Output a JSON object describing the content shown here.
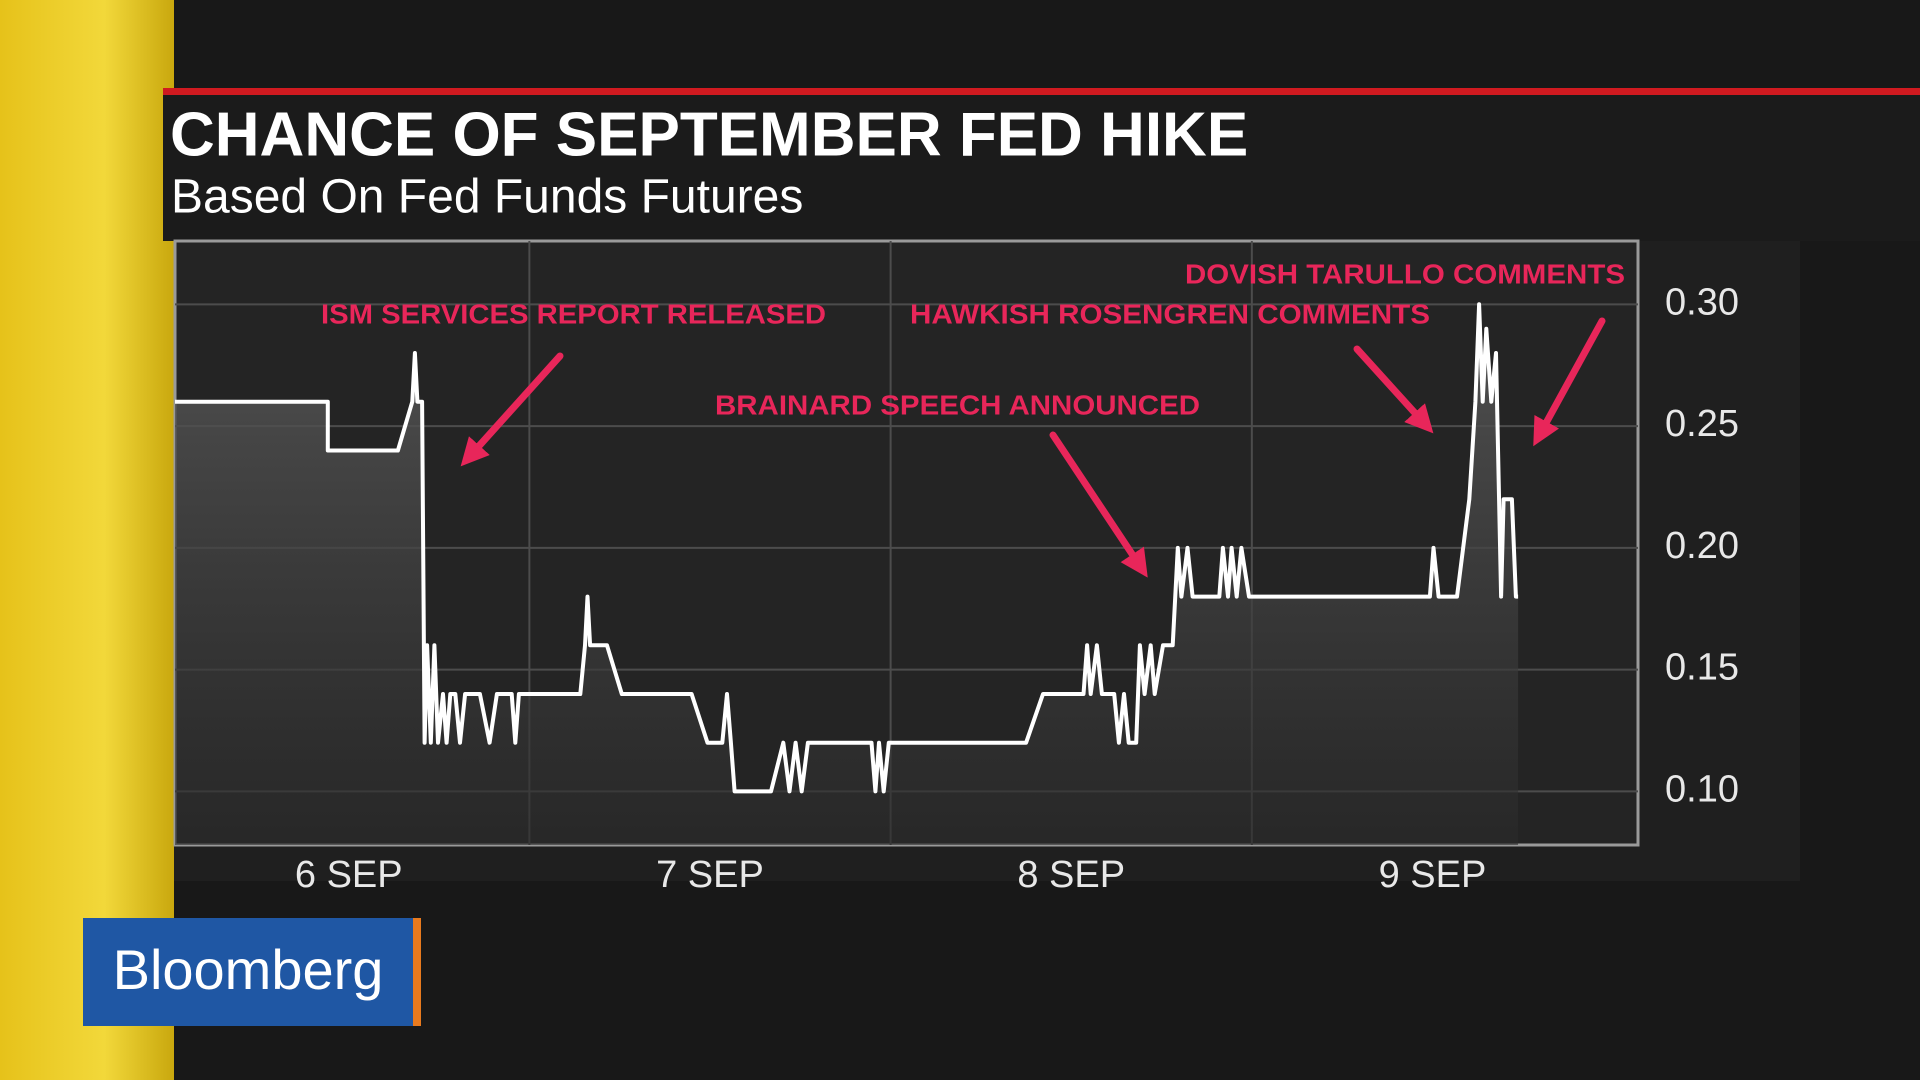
{
  "chart_data": {
    "type": "line",
    "title": "CHANCE OF SEPTEMBER FED HIKE",
    "subtitle": "Based On Fed Funds Futures",
    "annotations": [
      "ISM SERVICES REPORT RELEASED",
      "HAWKISH ROSENGREN COMMENTS",
      "BRAINARD SPEECH ANNOUNCED",
      "DOVISH TARULLO COMMENTS"
    ],
    "brand": "Bloomberg",
    "color": "#ffffff",
    "grid": true,
    "xlim": [
      5.519,
      9.569
    ],
    "ylim": [
      0.078,
      0.326
    ],
    "xticks": [
      {
        "value": 6,
        "label": "6 SEP"
      },
      {
        "value": 7,
        "label": "7 SEP"
      },
      {
        "value": 8,
        "label": "8 SEP"
      },
      {
        "value": 9,
        "label": "9 SEP"
      }
    ],
    "yticks": [
      {
        "value": 0.1,
        "label": "0.10"
      },
      0.15,
      {
        "value": 0.2,
        "label": "0.20"
      },
      0.25,
      {
        "value": 0.3,
        "label": "0.30"
      }
    ],
    "x": [
      5.519,
      5.942,
      5.942,
      6.136,
      6.176,
      6.183,
      6.19,
      6.203,
      6.21,
      6.217,
      6.227,
      6.237,
      6.247,
      6.261,
      6.271,
      6.281,
      6.295,
      6.308,
      6.322,
      6.363,
      6.39,
      6.41,
      6.451,
      6.461,
      6.471,
      6.641,
      6.654,
      6.661,
      6.668,
      6.715,
      6.756,
      6.949,
      6.993,
      7.034,
      7.047,
      7.058,
      7.068,
      7.169,
      7.203,
      7.22,
      7.237,
      7.254,
      7.271,
      7.447,
      7.458,
      7.468,
      7.481,
      7.495,
      7.875,
      7.922,
      8.034,
      8.044,
      8.054,
      8.071,
      8.085,
      8.119,
      8.132,
      8.146,
      8.159,
      8.18,
      8.19,
      8.203,
      8.22,
      8.231,
      8.254,
      8.281,
      8.295,
      8.305,
      8.322,
      8.336,
      8.41,
      8.42,
      8.434,
      8.444,
      8.458,
      8.471,
      8.492,
      8.993,
      9.003,
      9.017,
      9.068,
      9.102,
      9.119,
      9.129,
      9.139,
      9.149,
      9.163,
      9.176,
      9.19,
      9.197,
      9.22,
      9.231,
      9.237
    ],
    "values": [
      0.26,
      0.26,
      0.24,
      0.24,
      0.26,
      0.28,
      0.26,
      0.26,
      0.12,
      0.16,
      0.12,
      0.16,
      0.12,
      0.14,
      0.12,
      0.14,
      0.14,
      0.12,
      0.14,
      0.14,
      0.12,
      0.14,
      0.14,
      0.12,
      0.14,
      0.14,
      0.16,
      0.18,
      0.16,
      0.16,
      0.14,
      0.14,
      0.12,
      0.12,
      0.14,
      0.12,
      0.1,
      0.1,
      0.12,
      0.1,
      0.12,
      0.1,
      0.12,
      0.12,
      0.1,
      0.12,
      0.1,
      0.12,
      0.12,
      0.14,
      0.14,
      0.16,
      0.14,
      0.16,
      0.14,
      0.14,
      0.12,
      0.14,
      0.12,
      0.12,
      0.16,
      0.14,
      0.16,
      0.14,
      0.16,
      0.16,
      0.2,
      0.18,
      0.2,
      0.18,
      0.18,
      0.2,
      0.18,
      0.2,
      0.18,
      0.2,
      0.18,
      0.18,
      0.2,
      0.18,
      0.18,
      0.22,
      0.26,
      0.3,
      0.26,
      0.29,
      0.26,
      0.28,
      0.18,
      0.22,
      0.22,
      0.18,
      0.18
    ]
  }
}
